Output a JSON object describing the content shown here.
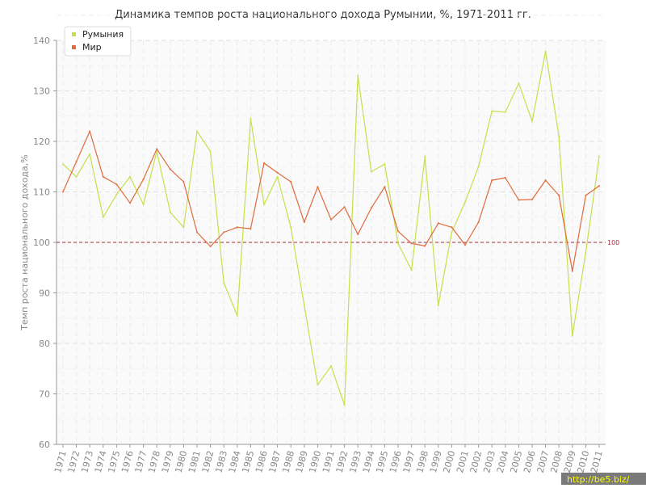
{
  "chart_data": {
    "type": "line",
    "title": "Динамика темпов роста национального дохода Румынии, %, 1971-2011 гг.",
    "xlabel": "",
    "ylabel": "Темп роста национального дохода,%",
    "ylim": [
      60,
      140
    ],
    "yticks": [
      60,
      70,
      80,
      90,
      100,
      110,
      120,
      130,
      140
    ],
    "grid": true,
    "legend_position": "top-left",
    "x": [
      "1971",
      "1972",
      "1973",
      "1974",
      "1975",
      "1976",
      "1977",
      "1978",
      "1979",
      "1980",
      "1981",
      "1982",
      "1983",
      "1984",
      "1985",
      "1986",
      "1987",
      "1988",
      "1989",
      "1990",
      "1991",
      "1992",
      "1993",
      "1994",
      "1995",
      "1996",
      "1997",
      "1998",
      "1999",
      "2000",
      "2001",
      "2002",
      "2003",
      "2004",
      "2005",
      "2006",
      "2007",
      "2008",
      "2009",
      "2010",
      "2011"
    ],
    "series": [
      {
        "name": "Румыния",
        "color": "#c5e04a",
        "values": [
          115.5,
          113.0,
          117.5,
          105.0,
          109.5,
          113.0,
          107.5,
          118.0,
          106.0,
          103.0,
          122.0,
          118.0,
          92.0,
          85.5,
          124.5,
          107.5,
          113.0,
          103.0,
          87.5,
          71.8,
          75.5,
          67.8,
          133.0,
          114.0,
          115.5,
          99.8,
          94.5,
          117.0,
          87.5,
          102.0,
          108.0,
          115.0,
          126.0,
          125.8,
          131.5,
          124.0,
          137.8,
          121.0,
          81.5,
          98.0,
          117.0
        ]
      },
      {
        "name": "Мир",
        "color": "#e06a3a",
        "values": [
          110.0,
          116.0,
          122.0,
          113.0,
          111.5,
          107.8,
          112.5,
          118.5,
          114.5,
          112.0,
          102.0,
          99.2,
          102.0,
          103.0,
          102.7,
          115.7,
          113.8,
          112.0,
          104.0,
          111.0,
          104.5,
          107.0,
          101.6,
          106.8,
          111.0,
          102.2,
          99.8,
          99.3,
          103.8,
          103.0,
          99.5,
          104.0,
          112.3,
          112.8,
          108.4,
          108.5,
          112.3,
          109.3,
          94.3,
          109.3,
          111.2
        ]
      }
    ],
    "reference_line": {
      "value": 100,
      "label": "100",
      "color": "#a0303a"
    }
  },
  "watermark": "http://be5.biz/"
}
